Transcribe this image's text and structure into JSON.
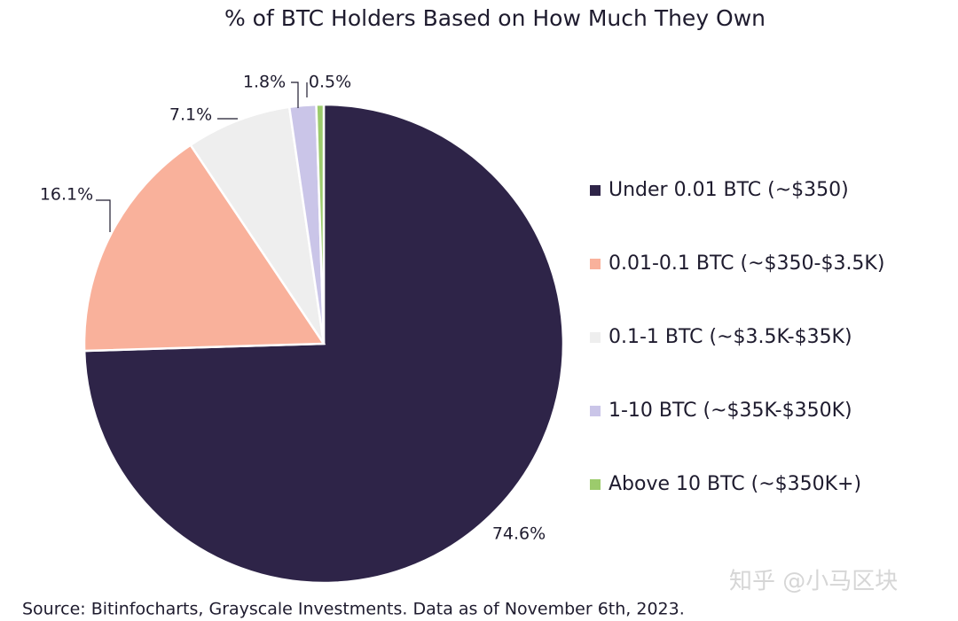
{
  "chart_data": {
    "type": "pie",
    "title": "% of BTC Holders Based on How Much They Own",
    "categories": [
      "Under 0.01 BTC (~$350)",
      "0.01-0.1 BTC (~$350-$3.5K)",
      "0.1-1 BTC (~$3.5K-$35K)",
      "1-10 BTC (~$35K-$350K)",
      "Above 10 BTC (~$350K+)"
    ],
    "values": [
      74.6,
      16.1,
      7.1,
      1.8,
      0.5
    ],
    "value_labels": [
      "74.6%",
      "16.1%",
      "7.1%",
      "1.8%",
      "0.5%"
    ],
    "colors": [
      "#2e2448",
      "#f9b19b",
      "#eeeeee",
      "#cac5e8",
      "#9ccb6c"
    ],
    "legend": "right",
    "source": "Source: Bitinfocharts, Grayscale Investments. Data as of November 6th, 2023.",
    "watermark": "知乎 @小马区块"
  }
}
